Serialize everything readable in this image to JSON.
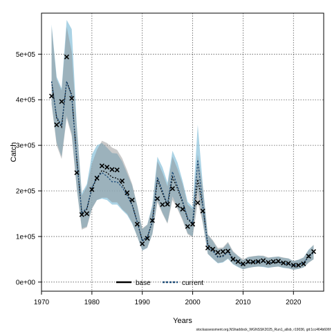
{
  "chart_data": {
    "type": "line",
    "title": "",
    "xlabel": "Years",
    "ylabel": "Catch",
    "xlim": [
      1970,
      2026
    ],
    "ylim": [
      -20000,
      590000
    ],
    "x_ticks": [
      1970,
      1980,
      1990,
      2000,
      2010,
      2020
    ],
    "y_ticks": [
      0,
      100000,
      200000,
      300000,
      400000,
      500000
    ],
    "y_tick_labels": [
      "0e+00",
      "1e+05",
      "2e+05",
      "3e+05",
      "4e+05",
      "5e+05"
    ],
    "grid": true,
    "legend": {
      "position": "bottom-center",
      "entries": [
        "base",
        "current"
      ]
    },
    "colors": {
      "base": "#000000",
      "current": "#1f4e79",
      "band_current": "#8fc4dc",
      "band_base": "#8a8a8a",
      "observed": "#000000"
    },
    "footnote": "stockassessment.org,NShaddock_WGNSSK2025_Run1_allsb, r19036, git:1cc464b606f",
    "years": [
      1972,
      1973,
      1974,
      1975,
      1976,
      1977,
      1978,
      1979,
      1980,
      1981,
      1982,
      1983,
      1984,
      1985,
      1986,
      1987,
      1988,
      1989,
      1990,
      1991,
      1992,
      1993,
      1994,
      1995,
      1996,
      1997,
      1998,
      1999,
      2000,
      2001,
      2002,
      2003,
      2004,
      2005,
      2006,
      2007,
      2008,
      2009,
      2010,
      2011,
      2012,
      2013,
      2014,
      2015,
      2016,
      2017,
      2018,
      2019,
      2020,
      2021,
      2022,
      2023,
      2024
    ],
    "observed": [
      408000,
      345000,
      396000,
      494000,
      403000,
      240000,
      148000,
      150000,
      203000,
      228000,
      255000,
      252000,
      247000,
      246000,
      222000,
      196000,
      180000,
      127000,
      84000,
      96000,
      135000,
      183000,
      170000,
      171000,
      205000,
      168000,
      160000,
      122000,
      127000,
      174000,
      156000,
      75000,
      72000,
      65000,
      67000,
      68000,
      50000,
      45000,
      40000,
      45000,
      44000,
      45000,
      47000,
      43000,
      45000,
      46000,
      42000,
      41000,
      37000,
      37000,
      40000,
      57000,
      67000
    ],
    "series": [
      {
        "name": "base",
        "values": [
          440000,
          360000,
          340000,
          440000,
          410000,
          270000,
          150000,
          160000,
          205000,
          228000,
          245000,
          240000,
          230000,
          228000,
          215000,
          195000,
          170000,
          132000,
          92000,
          98000,
          132000,
          225000,
          195000,
          168000,
          230000,
          205000,
          175000,
          138000,
          128000,
          225000,
          168000,
          82000,
          70000,
          56000,
          58000,
          68000,
          52000,
          45000,
          38000,
          42000,
          44000,
          45000,
          45000,
          42000,
          43000,
          44000,
          42000,
          40000,
          36000,
          38000,
          42000,
          55000,
          65000
        ],
        "lower": [
          390000,
          300000,
          270000,
          360000,
          320000,
          205000,
          115000,
          120000,
          160000,
          180000,
          185000,
          185000,
          175000,
          175000,
          160000,
          150000,
          130000,
          100000,
          70000,
          75000,
          105000,
          175000,
          150000,
          128000,
          180000,
          160000,
          135000,
          105000,
          98000,
          175000,
          130000,
          62000,
          52000,
          42000,
          44000,
          52000,
          40000,
          34000,
          28000,
          31000,
          33000,
          34000,
          34000,
          32000,
          33000,
          34000,
          32000,
          30000,
          27000,
          29000,
          32000,
          42000,
          50000
        ],
        "upper": [
          560000,
          445000,
          420000,
          560000,
          505000,
          340000,
          190000,
          210000,
          260000,
          290000,
          310000,
          305000,
          295000,
          290000,
          272000,
          245000,
          215000,
          168000,
          118000,
          126000,
          165000,
          265000,
          240000,
          210000,
          275000,
          248000,
          215000,
          170000,
          160000,
          280000,
          210000,
          105000,
          92000,
          75000,
          76000,
          88000,
          68000,
          58000,
          50000,
          55000,
          57000,
          58000,
          58000,
          54000,
          55000,
          56000,
          54000,
          52000,
          46000,
          49000,
          54000,
          70000,
          82000
        ]
      },
      {
        "name": "current",
        "values": [
          440000,
          362000,
          345000,
          440000,
          408000,
          268000,
          152000,
          162000,
          207000,
          230000,
          240000,
          232000,
          220000,
          220000,
          208000,
          190000,
          168000,
          132000,
          90000,
          98000,
          135000,
          230000,
          200000,
          170000,
          242000,
          210000,
          178000,
          140000,
          130000,
          268000,
          170000,
          80000,
          68000,
          54000,
          56000,
          66000,
          50000,
          44000,
          37000,
          42000,
          43000,
          45000,
          44000,
          41000,
          43000,
          44000,
          41000,
          40000,
          36000,
          38000,
          42000,
          56000,
          65000
        ],
        "lower": [
          392000,
          305000,
          275000,
          365000,
          325000,
          205000,
          118000,
          122000,
          162000,
          180000,
          183000,
          180000,
          170000,
          170000,
          158000,
          147000,
          128000,
          100000,
          69000,
          75000,
          106000,
          180000,
          152000,
          130000,
          188000,
          163000,
          138000,
          107000,
          100000,
          205000,
          132000,
          62000,
          51000,
          41000,
          43000,
          51000,
          39000,
          33000,
          28000,
          31000,
          33000,
          34000,
          33000,
          31000,
          33000,
          34000,
          31000,
          30000,
          27000,
          29000,
          32000,
          43000,
          50000
        ],
        "upper": [
          565000,
          450000,
          425000,
          575000,
          555000,
          345000,
          195000,
          215000,
          280000,
          300000,
          305000,
          295000,
          283000,
          282000,
          265000,
          238000,
          212000,
          168000,
          116000,
          126000,
          170000,
          275000,
          252000,
          218000,
          288000,
          262000,
          222000,
          176000,
          165000,
          345000,
          215000,
          103000,
          90000,
          72000,
          74000,
          86000,
          66000,
          57000,
          48000,
          55000,
          56000,
          58000,
          57000,
          53000,
          55000,
          56000,
          53000,
          52000,
          46000,
          49000,
          54000,
          71000,
          81000
        ]
      }
    ]
  }
}
